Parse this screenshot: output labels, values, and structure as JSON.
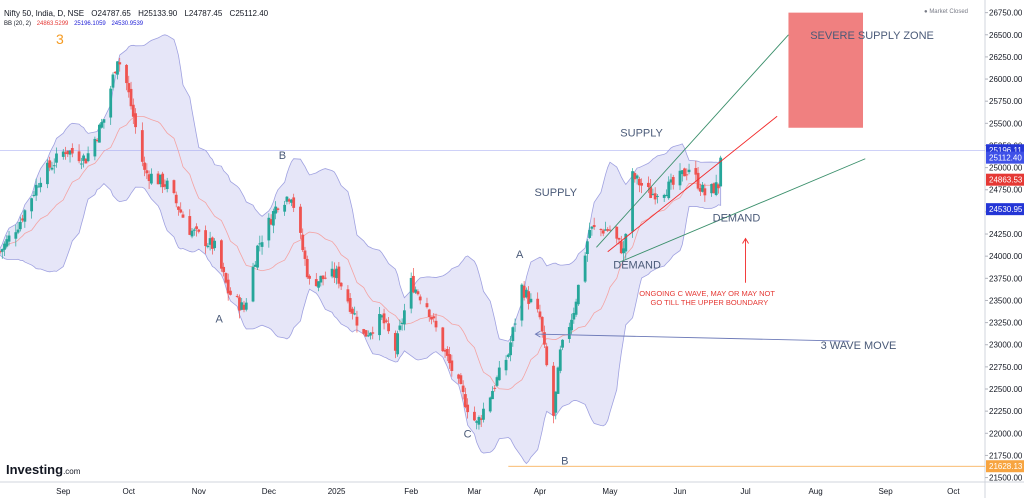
{
  "header": {
    "symbol": "Nifty 50, India, D, NSE",
    "open": "O24787.65",
    "high": "H25133.90",
    "low": "L24787.45",
    "close": "C25112.40",
    "bb_label": "BB (20, 2)",
    "bb_basis": "24863.5299",
    "bb_upper": "25196.1059",
    "bb_lower": "24530.9539",
    "badge": "3",
    "market_status": "Market Closed"
  },
  "logo": {
    "name": "Investing",
    "suffix": ".com"
  },
  "colors": {
    "up": "#26a69a",
    "down": "#ef5350",
    "band": "#c7c8f0",
    "basis": "#f4a3a3",
    "label_blue": "#1c1cd6",
    "label_red": "#e53935",
    "label_orange": "#f7a440",
    "supply_box": "#f08080"
  },
  "chart_data": {
    "type": "candlestick",
    "title": "Nifty 50, India, D, NSE",
    "y_ticks": [
      21500,
      21750,
      22000,
      22250,
      22500,
      22750,
      23000,
      23250,
      23500,
      23750,
      24000,
      24250,
      24500,
      24750,
      25000,
      25250,
      25500,
      25750,
      26000,
      26250,
      26500,
      26750
    ],
    "ylim": [
      21450,
      26870
    ],
    "x_ticks": [
      {
        "label": "Sep",
        "date": "2024-09-02"
      },
      {
        "label": "Oct",
        "date": "2024-10-01"
      },
      {
        "label": "Nov",
        "date": "2024-11-01"
      },
      {
        "label": "Dec",
        "date": "2024-12-02"
      },
      {
        "label": "2025",
        "date": "2025-01-01"
      },
      {
        "label": "Feb",
        "date": "2025-02-03"
      },
      {
        "label": "Mar",
        "date": "2025-03-03"
      },
      {
        "label": "Apr",
        "date": "2025-04-01"
      },
      {
        "label": "May",
        "date": "2025-05-02"
      },
      {
        "label": "Jun",
        "date": "2025-06-02"
      },
      {
        "label": "Jul",
        "date": "2025-07-01"
      },
      {
        "label": "Aug",
        "date": "2025-08-01"
      },
      {
        "label": "Sep",
        "date": "2025-09-01"
      },
      {
        "label": "Oct",
        "date": "2025-10-01"
      }
    ],
    "x_range": [
      "2024-08-05",
      "2025-10-15"
    ],
    "price_labels": [
      {
        "value": 25196.11,
        "text": "25196.11",
        "color": "label_blue"
      },
      {
        "value": 25112.4,
        "text": "25112.40",
        "color": "label_blue_light"
      },
      {
        "value": 24863.53,
        "text": "24863.53",
        "color": "label_red"
      },
      {
        "value": 24530.95,
        "text": "24530.95",
        "color": "label_blue"
      },
      {
        "value": 21628.13,
        "text": "21628.13",
        "color": "label_orange"
      }
    ],
    "series": [
      {
        "name": "Nifty 50",
        "path": [
          [
            "2024-08-05",
            24050
          ],
          [
            "2024-08-14",
            24400
          ],
          [
            "2024-08-23",
            24900
          ],
          [
            "2024-09-03",
            25200
          ],
          [
            "2024-09-12",
            25100
          ],
          [
            "2024-09-20",
            25550
          ],
          [
            "2024-09-26",
            26250
          ],
          [
            "2024-09-30",
            25950
          ],
          [
            "2024-10-08",
            24950
          ],
          [
            "2024-10-18",
            24800
          ],
          [
            "2024-10-28",
            24300
          ],
          [
            "2024-11-08",
            24100
          ],
          [
            "2024-11-14",
            23600
          ],
          [
            "2024-11-21",
            23400
          ],
          [
            "2024-11-27",
            24100
          ],
          [
            "2024-12-06",
            24600
          ],
          [
            "2024-12-12",
            24700
          ],
          [
            "2024-12-20",
            23700
          ],
          [
            "2025-01-01",
            23800
          ],
          [
            "2025-01-13",
            23100
          ],
          [
            "2025-01-21",
            23300
          ],
          [
            "2025-01-27",
            22950
          ],
          [
            "2025-02-03",
            23700
          ],
          [
            "2025-02-10",
            23450
          ],
          [
            "2025-02-18",
            22900
          ],
          [
            "2025-02-28",
            22300
          ],
          [
            "2025-03-04",
            22100
          ],
          [
            "2025-03-12",
            22550
          ],
          [
            "2025-03-18",
            22900
          ],
          [
            "2025-03-24",
            23650
          ],
          [
            "2025-04-01",
            23300
          ],
          [
            "2025-04-07",
            22200
          ],
          [
            "2025-04-10",
            22900
          ],
          [
            "2025-04-16",
            23400
          ],
          [
            "2025-04-23",
            24300
          ],
          [
            "2025-05-02",
            24300
          ],
          [
            "2025-05-08",
            24050
          ],
          [
            "2025-05-12",
            24900
          ],
          [
            "2025-05-20",
            24700
          ],
          [
            "2025-05-30",
            24800
          ],
          [
            "2025-06-06",
            25000
          ],
          [
            "2025-06-13",
            24700
          ],
          [
            "2025-06-19",
            24800
          ],
          [
            "2025-06-20",
            25112
          ]
        ]
      }
    ],
    "annotations": [
      {
        "text": "A",
        "date": "2024-11-10",
        "value": 23250
      },
      {
        "text": "B",
        "date": "2024-12-08",
        "value": 25100
      },
      {
        "text": "C",
        "date": "2025-02-28",
        "value": 21950
      },
      {
        "text": "A",
        "date": "2025-03-23",
        "value": 23980
      },
      {
        "text": "B",
        "date": "2025-04-12",
        "value": 21650
      },
      {
        "text": "SUPPLY",
        "date": "2025-05-16",
        "value": 25350
      },
      {
        "text": "SUPPLY",
        "date": "2025-04-08",
        "value": 24680
      },
      {
        "text": "DEMAND",
        "date": "2025-05-14",
        "value": 23860
      },
      {
        "text": "DEMAND",
        "date": "2025-06-27",
        "value": 24390
      },
      {
        "text": "SEVERE SUPPLY ZONE",
        "date": "2025-08-26",
        "value": 26450
      },
      {
        "text": "3 WAVE MOVE",
        "date": "2025-08-20",
        "value": 22950
      },
      {
        "text": "ONGOING C WAVE, MAY OR MAY NOT",
        "date": "2025-06-14",
        "value": 23550
      },
      {
        "text": "GO TILL THE UPPER BOUNDARY",
        "date": "2025-06-15",
        "value": 23450
      }
    ],
    "zone": {
      "from": "2025-07-20",
      "to": "2025-08-22",
      "low": 25450,
      "high": 26750
    },
    "lines": [
      {
        "name": "green-upper",
        "from": [
          "2025-04-26",
          24100
        ],
        "to": [
          "2025-07-20",
          26500
        ]
      },
      {
        "name": "green-lower",
        "from": [
          "2025-05-06",
          23930
        ],
        "to": [
          "2025-08-23",
          25100
        ]
      },
      {
        "name": "red-channel",
        "from": [
          "2025-05-01",
          24050
        ],
        "to": [
          "2025-07-15",
          25580
        ]
      },
      {
        "name": "blue-arrow",
        "from": [
          "2025-08-16",
          23040
        ],
        "to": [
          "2025-03-30",
          23120
        ]
      },
      {
        "name": "red-arrow",
        "from": [
          "2025-07-01",
          23700
        ],
        "to": [
          "2025-07-01",
          24200
        ]
      }
    ]
  }
}
